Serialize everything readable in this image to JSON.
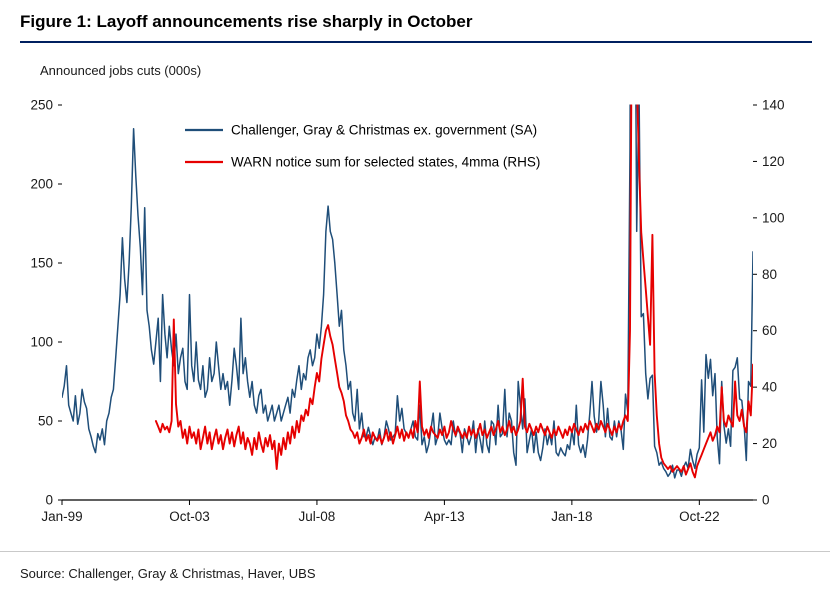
{
  "figure": {
    "title": "Figure 1: Layoff announcements rise sharply in October",
    "axis_title": "Announced jobs cuts (000s)",
    "source": "Source: Challenger, Gray & Christmas, Haver, UBS"
  },
  "colors": {
    "title_rule": "#002060",
    "axis": "#000000",
    "tick_text": "#1a1a1a",
    "series_blue": "#1f4e79",
    "series_red": "#e60000"
  },
  "chart_data": {
    "type": "line",
    "title": "Figure 1: Layoff announcements rise sharply in October",
    "ylabel": "Announced jobs cuts (000s)",
    "xlabel": "",
    "grid": false,
    "legend_position": "top-inside",
    "months_total": 310,
    "x_start": "Jan-99",
    "x_end": "Oct-24",
    "x_axis": {
      "ticks": [
        {
          "index": 0,
          "label": "Jan-99"
        },
        {
          "index": 57,
          "label": "Oct-03"
        },
        {
          "index": 114,
          "label": "Jul-08"
        },
        {
          "index": 171,
          "label": "Apr-13"
        },
        {
          "index": 228,
          "label": "Jan-18"
        },
        {
          "index": 285,
          "label": "Oct-22"
        }
      ]
    },
    "left_axis": {
      "min": 0,
      "max": 250,
      "ticks": [
        0,
        50,
        100,
        150,
        200,
        250
      ]
    },
    "right_axis": {
      "min": 0,
      "max": 140,
      "ticks": [
        0,
        20,
        40,
        60,
        80,
        100,
        120,
        140
      ]
    },
    "series": [
      {
        "name": "Challenger, Gray & Christmas ex. government (SA)",
        "color": "#1f4e79",
        "axis": "left",
        "start_index": 0,
        "values": [
          65,
          72,
          85,
          60,
          55,
          50,
          66,
          48,
          55,
          70,
          62,
          58,
          45,
          40,
          34,
          30,
          42,
          38,
          45,
          35,
          50,
          55,
          65,
          70,
          90,
          110,
          130,
          166,
          140,
          125,
          150,
          186,
          235,
          205,
          180,
          160,
          130,
          185,
          120,
          110,
          95,
          86,
          100,
          115,
          75,
          130,
          105,
          90,
          110,
          95,
          85,
          105,
          80,
          90,
          96,
          75,
          70,
          130,
          85,
          75,
          100,
          76,
          70,
          85,
          65,
          70,
          90,
          75,
          80,
          100,
          85,
          70,
          80,
          70,
          75,
          60,
          76,
          96,
          85,
          70,
          115,
          80,
          90,
          75,
          65,
          75,
          60,
          55,
          66,
          70,
          55,
          60,
          50,
          55,
          60,
          50,
          55,
          60,
          50,
          55,
          60,
          65,
          55,
          70,
          65,
          76,
          85,
          70,
          80,
          76,
          90,
          95,
          85,
          90,
          105,
          96,
          110,
          130,
          170,
          186,
          170,
          165,
          150,
          130,
          110,
          120,
          95,
          85,
          70,
          75,
          55,
          50,
          70,
          45,
          55,
          40,
          40,
          46,
          40,
          35,
          40,
          38,
          45,
          35,
          40,
          50,
          45,
          38,
          40,
          42,
          66,
          50,
          58,
          45,
          42,
          40,
          45,
          50,
          40,
          38,
          60,
          35,
          40,
          30,
          35,
          45,
          55,
          35,
          40,
          55,
          45,
          38,
          35,
          38,
          35,
          50,
          40,
          45,
          42,
          30,
          45,
          40,
          35,
          40,
          50,
          30,
          45,
          38,
          30,
          50,
          35,
          30,
          50,
          48,
          35,
          60,
          40,
          42,
          70,
          40,
          55,
          50,
          30,
          22,
          75,
          60,
          45,
          64,
          30,
          38,
          45,
          30,
          43,
          30,
          25,
          33,
          45,
          35,
          42,
          35,
          50,
          30,
          28,
          33,
          30,
          28,
          35,
          32,
          44,
          35,
          60,
          35,
          30,
          35,
          27,
          38,
          55,
          75,
          53,
          43,
          50,
          75,
          60,
          40,
          58,
          40,
          38,
          50,
          40,
          50,
          44,
          32,
          67,
          56,
          222,
          671,
          397,
          170,
          262,
          116,
          118,
          80,
          64,
          77,
          79,
          34,
          30,
          22,
          24,
          20,
          18,
          15,
          17,
          22,
          14,
          19,
          19,
          15,
          21,
          24,
          20,
          32,
          25,
          20,
          29,
          33,
          76,
          43,
          92,
          77,
          89,
          66,
          80,
          40,
          23,
          75,
          47,
          36,
          45,
          34,
          82,
          84,
          90,
          64,
          63,
          48,
          25,
          75,
          72,
          157
        ]
      },
      {
        "name": "WARN notice sum for selected states, 4mma (RHS)",
        "color": "#e60000",
        "axis": "right",
        "start_index": 42,
        "values": [
          28,
          26,
          24,
          27,
          25,
          26,
          24,
          28,
          64,
          34,
          26,
          28,
          22,
          25,
          20,
          26,
          22,
          24,
          20,
          25,
          18,
          22,
          26,
          20,
          24,
          18,
          22,
          25,
          20,
          23,
          18,
          22,
          25,
          20,
          24,
          19,
          23,
          26,
          20,
          24,
          18,
          22,
          20,
          16,
          22,
          18,
          24,
          20,
          17,
          22,
          19,
          23,
          18,
          21,
          11,
          20,
          16,
          22,
          18,
          24,
          20,
          26,
          22,
          28,
          24,
          30,
          28,
          32,
          30,
          36,
          34,
          40,
          45,
          42,
          50,
          55,
          60,
          62,
          58,
          55,
          50,
          45,
          40,
          38,
          35,
          30,
          28,
          25,
          24,
          22,
          24,
          20,
          22,
          25,
          21,
          23,
          20,
          24,
          22,
          21,
          23,
          20,
          22,
          25,
          21,
          24,
          20,
          23,
          26,
          22,
          25,
          21,
          24,
          22,
          25,
          22,
          28,
          24,
          42,
          26,
          23,
          25,
          22,
          26,
          24,
          23,
          22,
          25,
          23,
          26,
          22,
          24,
          28,
          25,
          23,
          26,
          24,
          22,
          24,
          22,
          26,
          23,
          25,
          22,
          24,
          27,
          23,
          25,
          22,
          24,
          26,
          23,
          25,
          28,
          24,
          26,
          23,
          25,
          28,
          24,
          26,
          23,
          25,
          28,
          43,
          26,
          24,
          27,
          25,
          23,
          26,
          24,
          27,
          25,
          23,
          26,
          24,
          22,
          25,
          23,
          26,
          24,
          22,
          25,
          23,
          26,
          24,
          27,
          25,
          23,
          26,
          24,
          27,
          25,
          28,
          26,
          24,
          27,
          25,
          28,
          26,
          24,
          27,
          25,
          23,
          26,
          24,
          27,
          25,
          28,
          30,
          28,
          60,
          200,
          220,
          150,
          120,
          95,
          85,
          75,
          65,
          55,
          94,
          45,
          30,
          20,
          15,
          13,
          12,
          11,
          12,
          10,
          11,
          12,
          11,
          10,
          12,
          9,
          11,
          13,
          10,
          8,
          12,
          14,
          16,
          18,
          20,
          22,
          24,
          21,
          23,
          26,
          24,
          40,
          28,
          26,
          30,
          28,
          26,
          42,
          30,
          28,
          32,
          26,
          24,
          35,
          30,
          48
        ]
      }
    ]
  }
}
